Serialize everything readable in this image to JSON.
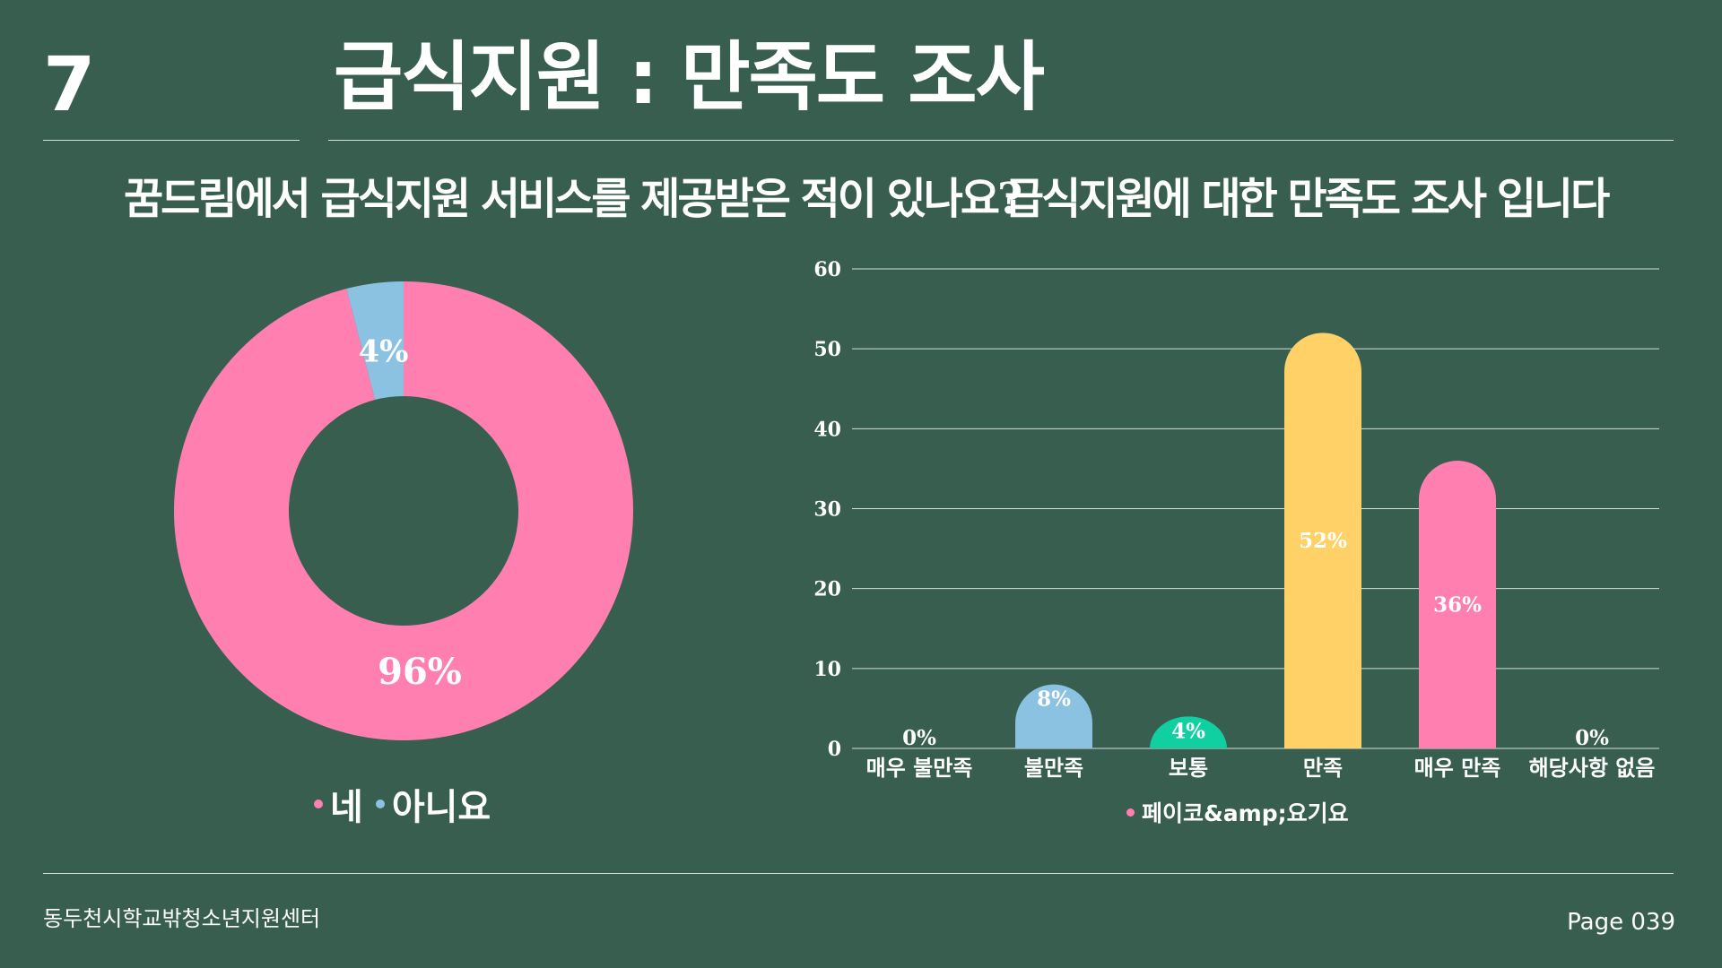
{
  "slide": {
    "number": "7",
    "title": "급식지원 : 만족도 조사"
  },
  "footer": {
    "organization": "동두천시학교밖청소년지원센터",
    "page": "Page 039"
  },
  "colors": {
    "background": "#375e4f",
    "pink": "#ff80b0",
    "blue": "#8bc2e2",
    "teal": "#10cfa0",
    "yellow": "#ffd166",
    "grid": "#d7e0da"
  },
  "chart_data": [
    {
      "type": "pie",
      "donut": true,
      "title": "꿈드림에서 급식지원 서비스를 제공받은 적이 있나요?",
      "categories": [
        "네",
        "아니요"
      ],
      "values": [
        96,
        4
      ],
      "data_labels": [
        "96%",
        "4%"
      ],
      "colors": [
        "#ff80b0",
        "#8bc2e2"
      ],
      "legend": {
        "placement": "bottom",
        "entries": [
          "네",
          "아니요"
        ]
      }
    },
    {
      "type": "bar",
      "title": "급식지원에 대한 만족도 조사 입니다",
      "categories": [
        "매우 불만족",
        "불만족",
        "보통",
        "만족",
        "매우 만족",
        "해당사항 없음"
      ],
      "series": [
        {
          "name": "페이코&amp;요기요",
          "values": [
            0,
            8,
            4,
            52,
            36,
            0
          ],
          "data_labels": [
            "0%",
            "8%",
            "4%",
            "52%",
            "36%",
            "0%"
          ],
          "colors": [
            "#8bc2e2",
            "#8bc2e2",
            "#10cfa0",
            "#ffd166",
            "#ff80b0",
            "#8bc2e2"
          ]
        }
      ],
      "ylim": [
        0,
        60
      ],
      "yticks": [
        "0",
        "10",
        "20",
        "30",
        "40",
        "50",
        "60"
      ],
      "grid": true,
      "legend": {
        "placement": "bottom",
        "entries": [
          "페이코&amp;요기요"
        ]
      }
    }
  ]
}
